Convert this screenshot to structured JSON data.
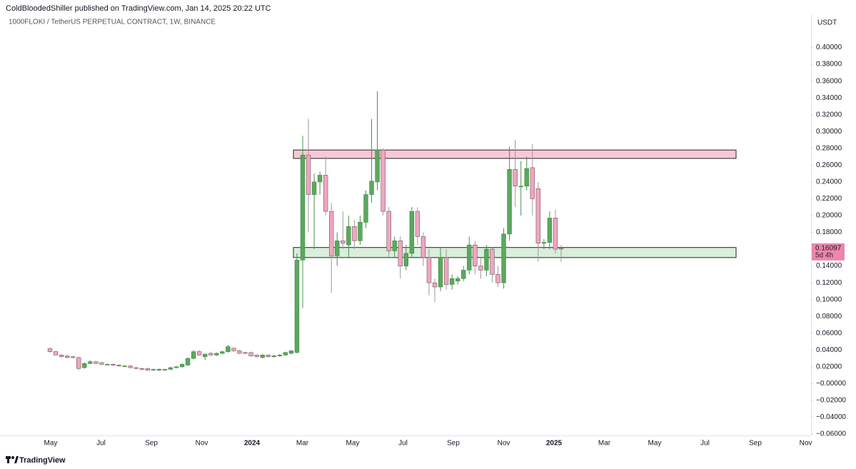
{
  "chart_data": {
    "type": "candlestick",
    "title": "ColdBloodedShiller published on TradingView.com, Jan 14, 2025 20:22 UTC",
    "subtitle": "1000FLOKI / TetherUS PERPETUAL CONTRACT, 1W, BINANCE",
    "currency": "USDT",
    "brand": "TradingView",
    "last_price": 0.16097,
    "countdown": "5d 4h",
    "up_color": "#5aa85e",
    "down_color": "#f3a5c0",
    "x_labels": [
      "May",
      "Jul",
      "Sep",
      "Nov",
      "2024",
      "Mar",
      "May",
      "Jul",
      "Sep",
      "Nov",
      "2025",
      "Mar",
      "May",
      "Jul",
      "Sep",
      "Nov"
    ],
    "zones": [
      {
        "low": 0.268,
        "high": 0.278,
        "color": "#f8c8d8"
      },
      {
        "low": 0.15,
        "high": 0.162,
        "color": "#d9eedb"
      }
    ],
    "open": [
      0.0415,
      0.038,
      0.034,
      0.033,
      0.032,
      0.031,
      0.019,
      0.024,
      0.026,
      0.025,
      0.023,
      0.023,
      0.022,
      0.021,
      0.021,
      0.019,
      0.018,
      0.018,
      0.017,
      0.016,
      0.017,
      0.017,
      0.019,
      0.02,
      0.022,
      0.03,
      0.038,
      0.032,
      0.036,
      0.034,
      0.036,
      0.038,
      0.042,
      0.039,
      0.037,
      0.037,
      0.034,
      0.031,
      0.034,
      0.032,
      0.033,
      0.034,
      0.036,
      0.037,
      0.147,
      0.272,
      0.225,
      0.24,
      0.248,
      0.205,
      0.152,
      0.17,
      0.165,
      0.187,
      0.17,
      0.192,
      0.225,
      0.24,
      0.278,
      0.205,
      0.158,
      0.17,
      0.14,
      0.155,
      0.205,
      0.175,
      0.15,
      0.12,
      0.115,
      0.15,
      0.118,
      0.122,
      0.125,
      0.135,
      0.165,
      0.14,
      0.135,
      0.16,
      0.13,
      0.12,
      0.178,
      0.255,
      0.235,
      0.235,
      0.257,
      0.232,
      0.167,
      0.168,
      0.197,
      0.161
    ],
    "high": [
      0.043,
      0.039,
      0.035,
      0.034,
      0.033,
      0.032,
      0.025,
      0.028,
      0.027,
      0.026,
      0.024,
      0.024,
      0.023,
      0.022,
      0.022,
      0.02,
      0.019,
      0.019,
      0.018,
      0.018,
      0.018,
      0.02,
      0.021,
      0.024,
      0.031,
      0.04,
      0.04,
      0.036,
      0.038,
      0.037,
      0.039,
      0.046,
      0.043,
      0.04,
      0.038,
      0.038,
      0.035,
      0.035,
      0.035,
      0.034,
      0.035,
      0.038,
      0.04,
      0.155,
      0.295,
      0.315,
      0.25,
      0.252,
      0.27,
      0.215,
      0.18,
      0.205,
      0.2,
      0.195,
      0.2,
      0.23,
      0.315,
      0.348,
      0.28,
      0.21,
      0.175,
      0.175,
      0.165,
      0.21,
      0.21,
      0.18,
      0.16,
      0.125,
      0.162,
      0.16,
      0.13,
      0.128,
      0.14,
      0.175,
      0.17,
      0.15,
      0.165,
      0.162,
      0.14,
      0.185,
      0.282,
      0.29,
      0.265,
      0.27,
      0.285,
      0.24,
      0.172,
      0.205,
      0.207,
      0.165
    ],
    "low": [
      0.037,
      0.034,
      0.031,
      0.03,
      0.03,
      0.016,
      0.018,
      0.023,
      0.023,
      0.022,
      0.022,
      0.021,
      0.02,
      0.02,
      0.018,
      0.017,
      0.016,
      0.015,
      0.015,
      0.015,
      0.015,
      0.016,
      0.018,
      0.019,
      0.021,
      0.029,
      0.033,
      0.028,
      0.033,
      0.033,
      0.035,
      0.037,
      0.038,
      0.035,
      0.035,
      0.032,
      0.031,
      0.03,
      0.031,
      0.031,
      0.032,
      0.033,
      0.035,
      0.036,
      0.09,
      0.18,
      0.16,
      0.225,
      0.2,
      0.108,
      0.14,
      0.16,
      0.15,
      0.16,
      0.165,
      0.185,
      0.215,
      0.23,
      0.2,
      0.15,
      0.15,
      0.125,
      0.135,
      0.15,
      0.165,
      0.14,
      0.105,
      0.097,
      0.11,
      0.112,
      0.112,
      0.118,
      0.122,
      0.13,
      0.13,
      0.125,
      0.128,
      0.12,
      0.115,
      0.113,
      0.17,
      0.21,
      0.2,
      0.23,
      0.2,
      0.145,
      0.16,
      0.16,
      0.155,
      0.145
    ],
    "close": [
      0.038,
      0.034,
      0.032,
      0.031,
      0.031,
      0.018,
      0.024,
      0.026,
      0.024,
      0.023,
      0.023,
      0.022,
      0.021,
      0.021,
      0.019,
      0.018,
      0.017,
      0.016,
      0.016,
      0.017,
      0.016,
      0.019,
      0.02,
      0.023,
      0.03,
      0.038,
      0.034,
      0.035,
      0.034,
      0.036,
      0.038,
      0.044,
      0.039,
      0.036,
      0.036,
      0.033,
      0.032,
      0.034,
      0.032,
      0.033,
      0.034,
      0.037,
      0.039,
      0.147,
      0.272,
      0.225,
      0.24,
      0.248,
      0.205,
      0.152,
      0.17,
      0.167,
      0.187,
      0.17,
      0.192,
      0.225,
      0.241,
      0.278,
      0.205,
      0.158,
      0.17,
      0.14,
      0.155,
      0.205,
      0.175,
      0.15,
      0.12,
      0.115,
      0.15,
      0.118,
      0.125,
      0.125,
      0.135,
      0.165,
      0.14,
      0.135,
      0.16,
      0.13,
      0.12,
      0.178,
      0.255,
      0.235,
      0.235,
      0.256,
      0.22,
      0.167,
      0.168,
      0.197,
      0.16,
      0.16097
    ],
    "ylim": [
      -0.06,
      0.42
    ],
    "yticks": [
      {
        "value": 0.4,
        "label": "0.40000"
      },
      {
        "value": 0.38,
        "label": "0.38000"
      },
      {
        "value": 0.36,
        "label": "0.36000"
      },
      {
        "value": 0.34,
        "label": "0.34000"
      },
      {
        "value": 0.32,
        "label": "0.32000"
      },
      {
        "value": 0.3,
        "label": "0.30000"
      },
      {
        "value": 0.28,
        "label": "0.28000"
      },
      {
        "value": 0.26,
        "label": "0.26000"
      },
      {
        "value": 0.24,
        "label": "0.24000"
      },
      {
        "value": 0.22,
        "label": "0.22000"
      },
      {
        "value": 0.2,
        "label": "0.20000"
      },
      {
        "value": 0.18,
        "label": "0.18000"
      },
      {
        "value": 0.16,
        "label": "0.16000"
      },
      {
        "value": 0.14,
        "label": "0.14000"
      },
      {
        "value": 0.12,
        "label": "0.12000"
      },
      {
        "value": 0.1,
        "label": "0.10000"
      },
      {
        "value": 0.08,
        "label": "0.08000"
      },
      {
        "value": 0.06,
        "label": "0.06000"
      },
      {
        "value": 0.04,
        "label": "0.04000"
      },
      {
        "value": 0.02,
        "label": "0.02000"
      },
      {
        "value": 0,
        "label": "−0.00000"
      },
      {
        "value": -0.02,
        "label": "−0.02000"
      },
      {
        "value": -0.04,
        "label": "−0.04000"
      },
      {
        "value": -0.06,
        "label": "−0.06000"
      }
    ]
  }
}
